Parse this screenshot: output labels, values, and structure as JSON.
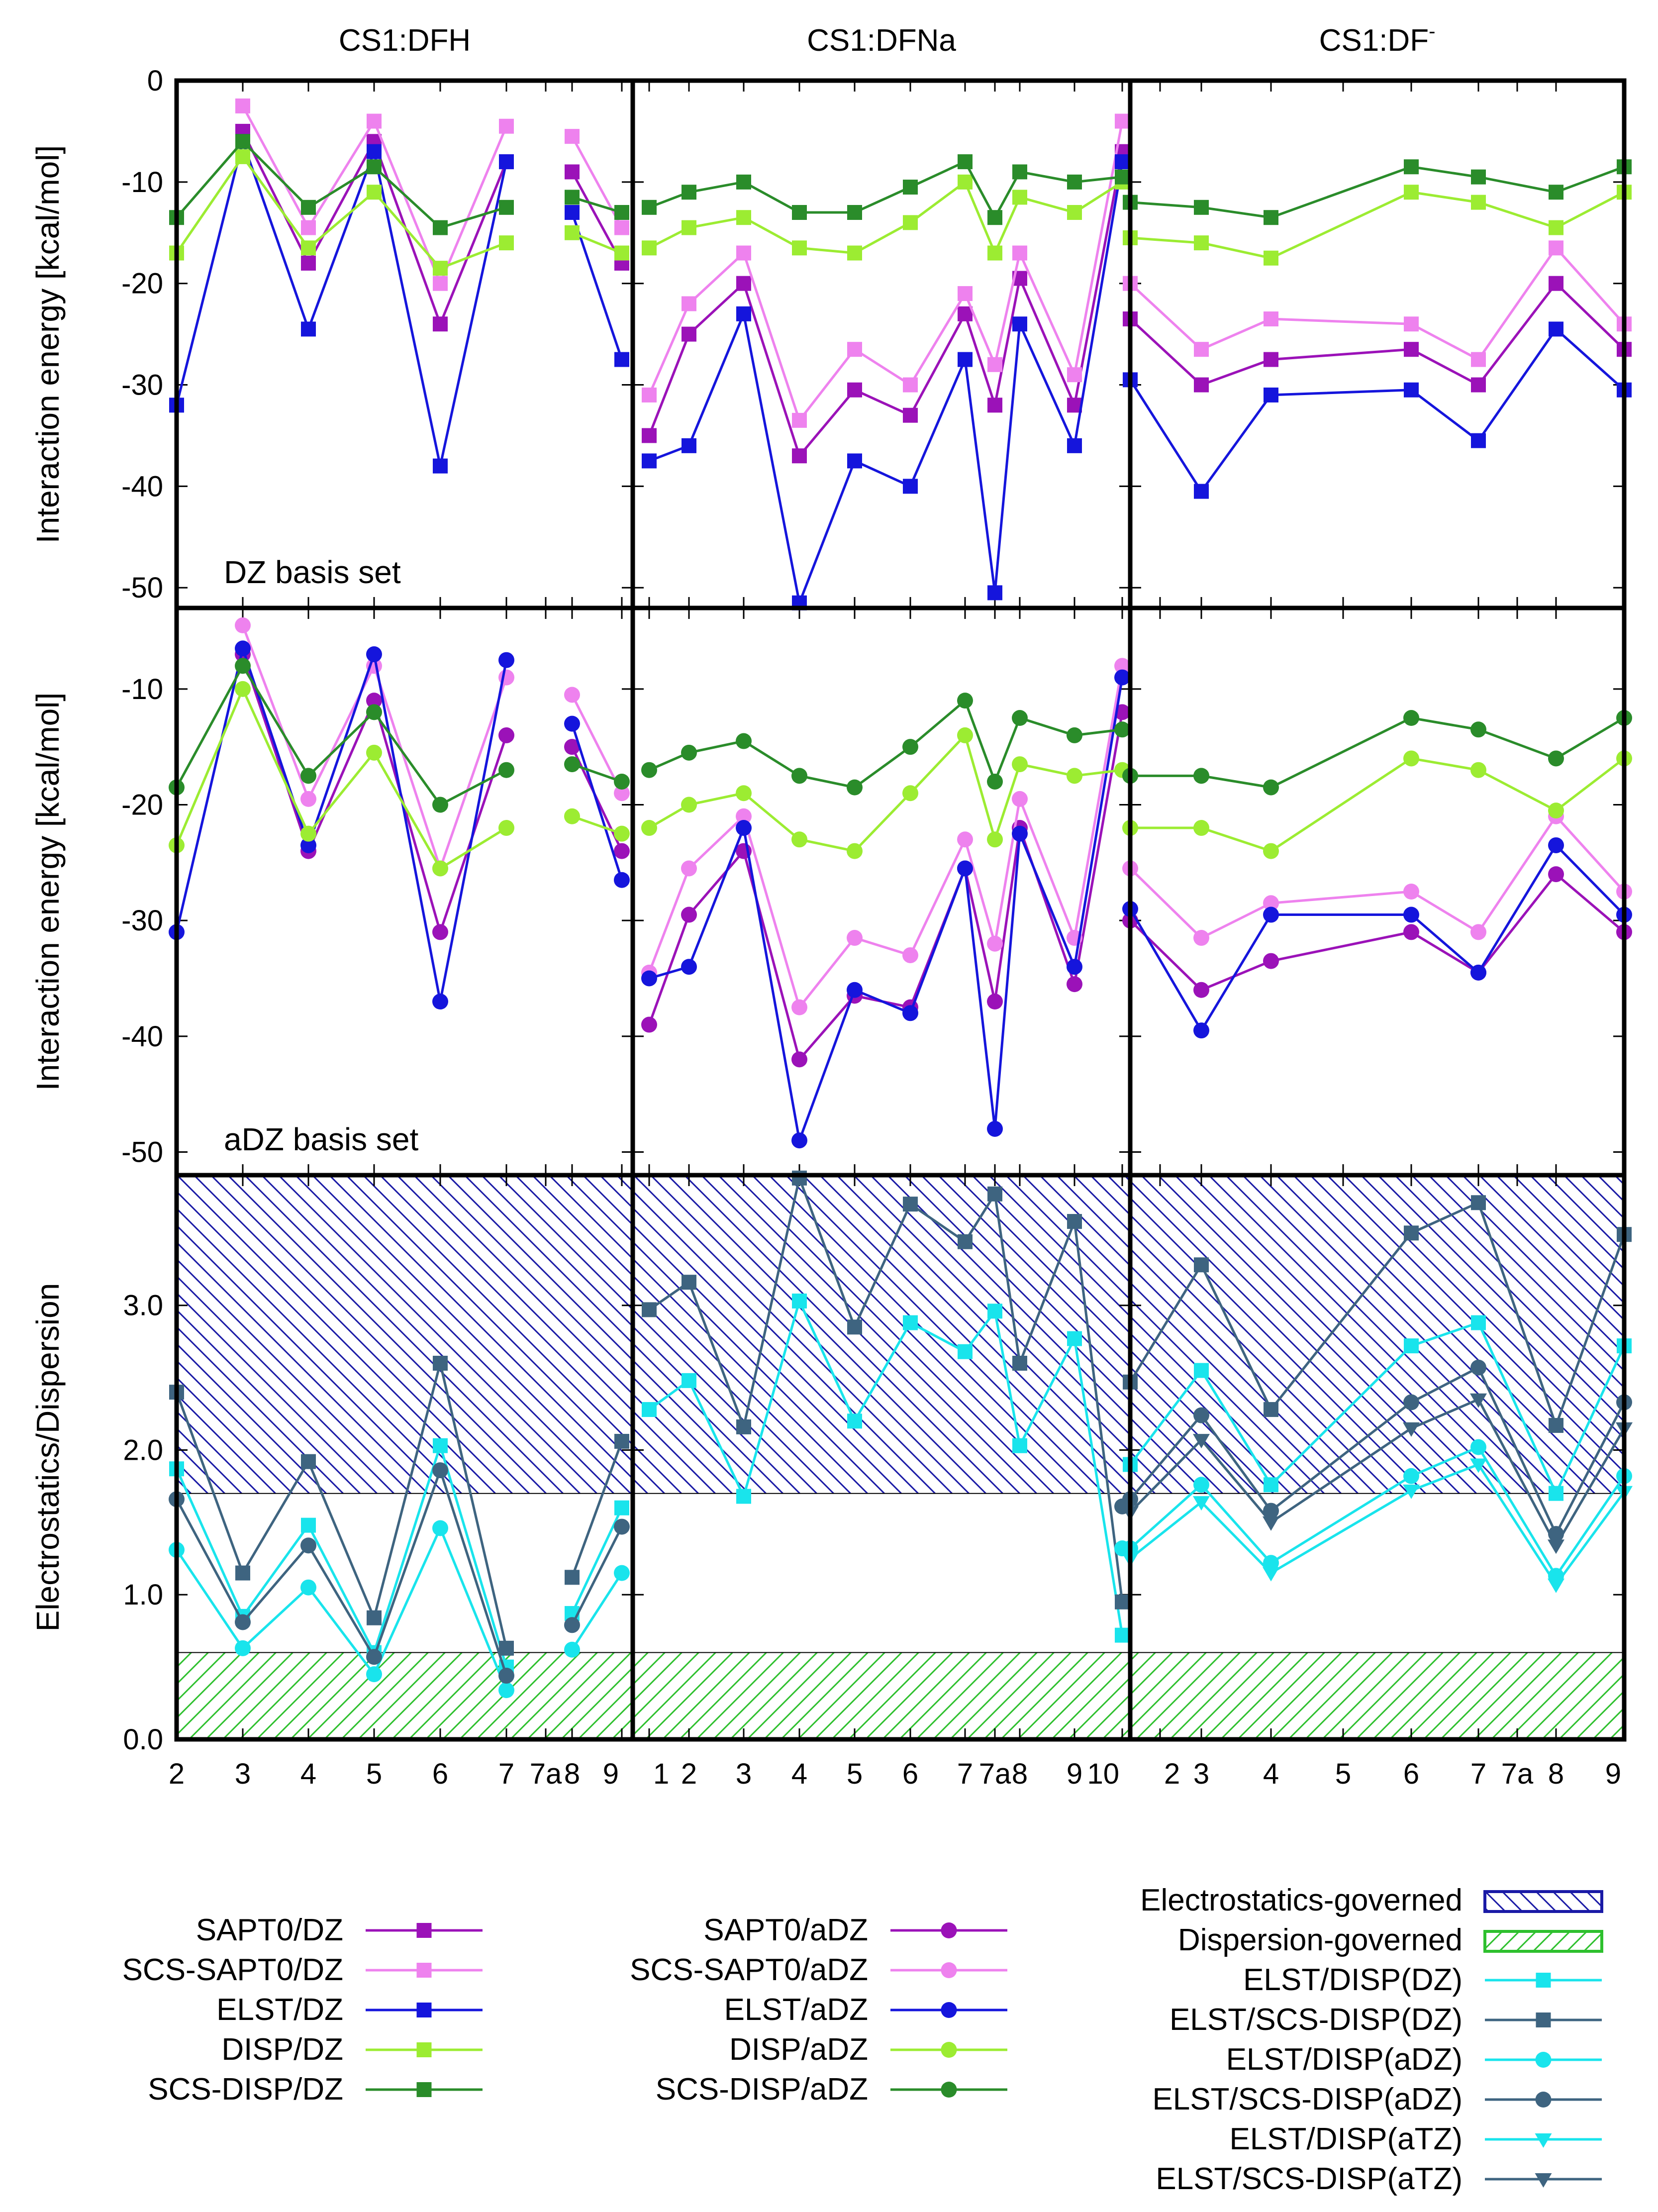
{
  "chart_data": {
    "type": "line",
    "columns": [
      {
        "title": "CS1:DFH",
        "x_tick_labels": [
          "2",
          "3",
          "4",
          "5",
          "6",
          "7",
          "7a",
          "8",
          "9"
        ]
      },
      {
        "title": "CS1:DFNa",
        "x_tick_labels": [
          "1",
          "2",
          "3",
          "4",
          "5",
          "6",
          "7",
          "7a",
          "8",
          "9",
          "10"
        ]
      },
      {
        "title": "CS1:DF",
        "title_superscript": "-",
        "x_tick_labels": [
          "2",
          "3",
          "4",
          "5",
          "6",
          "7",
          "7a",
          "8",
          "9"
        ]
      }
    ],
    "rows": [
      {
        "ylabel": "Interaction energy [kcal/mol]",
        "note": "DZ basis set",
        "ylim": [
          -52,
          0
        ],
        "y_ticks": [
          "0",
          "-10",
          "-20",
          "-30",
          "-40",
          "-50"
        ]
      },
      {
        "ylabel": "Interaction energy [kcal/mol]",
        "note": "aDZ basis set",
        "ylim": [
          -52,
          -3
        ],
        "y_ticks": [
          "-10",
          "-20",
          "-30",
          "-40",
          "-50"
        ]
      },
      {
        "ylabel": "Electrostatics/Dispersion",
        "ylim": [
          0,
          3.9
        ],
        "y_ticks": [
          "0.0",
          "1.0",
          "2.0",
          "3.0"
        ]
      }
    ],
    "regions": [
      {
        "name": "Electrostatics-governed",
        "range": [
          1.7,
          3.9
        ],
        "color": "#1a1aa6"
      },
      {
        "name": "Dispersion-governed",
        "range": [
          0,
          0.6
        ],
        "color": "#2ec02e"
      }
    ],
    "series": [
      {
        "name": "SAPT0/DZ",
        "row": 0,
        "color": "#9b12b8",
        "marker": "square",
        "values": [
          [
            null,
            -5,
            -18,
            -6,
            -24,
            -8,
            null,
            -9,
            -18
          ],
          [
            -35,
            -25,
            -20,
            -37,
            -30.5,
            -33,
            -23,
            -32,
            -19.5,
            -32,
            -7
          ],
          [
            -23.5,
            -30,
            -27.5,
            -26.5,
            -30,
            -20,
            -26.5
          ]
        ]
      },
      {
        "name": "SCS-SAPT0/DZ",
        "row": 0,
        "color": "#ee82ee",
        "marker": "square",
        "values": [
          [
            null,
            -2.5,
            -14.5,
            -4,
            -20,
            -4.5,
            null,
            -5.5,
            -14.5
          ],
          [
            -31,
            -22,
            -17,
            -33.5,
            -26.5,
            -30,
            -21,
            -28,
            -17,
            -29,
            -4
          ],
          [
            -20,
            -26.5,
            -23.5,
            -24,
            -27.5,
            -16.5,
            -24
          ]
        ]
      },
      {
        "name": "ELST/DZ",
        "row": 0,
        "color": "#1515dc",
        "marker": "square",
        "values": [
          [
            -32,
            -6,
            -24.5,
            -7,
            -38,
            -8,
            null,
            -13,
            -27.5
          ],
          [
            -37.5,
            -36,
            -23,
            -51.5,
            -37.5,
            -40,
            -27.5,
            -50.5,
            -24,
            -36,
            -8
          ],
          [
            -29.5,
            -40.5,
            -31,
            -30.5,
            -35.5,
            -24.5,
            -30.5
          ]
        ]
      },
      {
        "name": "DISP/DZ",
        "row": 0,
        "color": "#9cec32",
        "marker": "square",
        "values": [
          [
            -17,
            -7.5,
            -16.5,
            -11,
            -18.5,
            -16,
            null,
            -15,
            -17
          ],
          [
            -16.5,
            -14.5,
            -13.5,
            -16.5,
            -17,
            -14,
            -10,
            -17,
            -11.5,
            -13,
            -10
          ],
          [
            -15.5,
            -16,
            -17.5,
            -11,
            -12,
            -14.5,
            -11
          ]
        ]
      },
      {
        "name": "SCS-DISP/DZ",
        "row": 0,
        "color": "#2a8c2a",
        "marker": "square",
        "values": [
          [
            -13.5,
            -6,
            -12.5,
            -8.5,
            -14.5,
            -12.5,
            null,
            -11.5,
            -13
          ],
          [
            -12.5,
            -11,
            -10,
            -13,
            -13,
            -10.5,
            -8,
            -13.5,
            -9,
            -10,
            -9.5
          ],
          [
            -12,
            -12.5,
            -13.5,
            -8.5,
            -9.5,
            -11,
            -8.5
          ]
        ]
      },
      {
        "name": "SAPT0/aDZ",
        "row": 1,
        "color": "#9b12b8",
        "marker": "circle",
        "values": [
          [
            null,
            -7,
            -24,
            -11,
            -31,
            -14,
            null,
            -15,
            -24
          ],
          [
            -39,
            -29.5,
            -24,
            -42,
            -36.5,
            -37.5,
            -25.5,
            -37,
            -22,
            -35.5,
            -12
          ],
          [
            -30,
            -36,
            -33.5,
            -31,
            -34.5,
            -26,
            -31
          ]
        ]
      },
      {
        "name": "SCS-SAPT0/aDZ",
        "row": 1,
        "color": "#ee82ee",
        "marker": "circle",
        "values": [
          [
            null,
            -4.5,
            -19.5,
            -8,
            -25.5,
            -9,
            null,
            -10.5,
            -19
          ],
          [
            -34.5,
            -25.5,
            -21,
            -37.5,
            -31.5,
            -33,
            -23,
            -32,
            -19.5,
            -31.5,
            -8
          ],
          [
            -25.5,
            -31.5,
            -28.5,
            -27.5,
            -31,
            -21,
            -27.5
          ]
        ]
      },
      {
        "name": "ELST/aDZ",
        "row": 1,
        "color": "#1515dc",
        "marker": "circle",
        "values": [
          [
            -31,
            -6.5,
            -23.5,
            -7,
            -37,
            -7.5,
            null,
            -13,
            -26.5
          ],
          [
            -35,
            -34,
            -22,
            -49,
            -36,
            -38,
            -25.5,
            -48,
            -22.5,
            -34,
            -9
          ],
          [
            -29,
            -39.5,
            -29.5,
            -29.5,
            -34.5,
            -23.5,
            -29.5
          ]
        ]
      },
      {
        "name": "DISP/aDZ",
        "row": 1,
        "color": "#9cec32",
        "marker": "circle",
        "values": [
          [
            -23.5,
            -10,
            -22.5,
            -15.5,
            -25.5,
            -22,
            null,
            -21,
            -22.5
          ],
          [
            -22,
            -20,
            -19,
            -23,
            -24,
            -19,
            -14,
            -23,
            -16.5,
            -17.5,
            -17
          ],
          [
            -22,
            -22,
            -24,
            -16,
            -17,
            -20.5,
            -16
          ]
        ]
      },
      {
        "name": "SCS-DISP/aDZ",
        "row": 1,
        "color": "#2a8c2a",
        "marker": "circle",
        "values": [
          [
            -18.5,
            -8,
            -17.5,
            -12,
            -20,
            -17,
            null,
            -16.5,
            -18
          ],
          [
            -17,
            -15.5,
            -14.5,
            -17.5,
            -18.5,
            -15,
            -11,
            -18,
            -12.5,
            -14,
            -13.5
          ],
          [
            -17.5,
            -17.5,
            -18.5,
            -12.5,
            -13.5,
            -16,
            -12.5
          ]
        ]
      },
      {
        "name": "ELST/DISP(DZ)",
        "row": 2,
        "color": "#19e4ec",
        "marker": "square",
        "values": [
          [
            1.87,
            0.85,
            1.48,
            0.6,
            2.03,
            0.5,
            null,
            0.87,
            1.6
          ],
          [
            2.28,
            2.48,
            1.68,
            3.03,
            2.2,
            2.88,
            2.68,
            2.96,
            2.03,
            2.77,
            0.72
          ],
          [
            1.9,
            2.55,
            1.76,
            2.72,
            2.88,
            1.7,
            2.72
          ]
        ]
      },
      {
        "name": "ELST/SCS-DISP(DZ)",
        "row": 2,
        "color": "#3e6480",
        "marker": "square",
        "values": [
          [
            2.4,
            1.15,
            1.92,
            0.84,
            2.6,
            0.63,
            null,
            1.12,
            2.06
          ],
          [
            2.97,
            3.16,
            2.16,
            3.88,
            2.85,
            3.7,
            3.44,
            3.77,
            2.6,
            3.58,
            0.95
          ],
          [
            2.47,
            3.28,
            2.28,
            3.5,
            3.71,
            2.17,
            3.49
          ]
        ]
      },
      {
        "name": "ELST/DISP(aDZ)",
        "row": 2,
        "color": "#19e4ec",
        "marker": "circle",
        "values": [
          [
            1.31,
            0.63,
            1.05,
            0.45,
            1.46,
            0.34,
            null,
            0.62,
            1.15
          ],
          [
            null,
            null,
            null,
            null,
            null,
            null,
            null,
            null,
            null,
            null,
            1.32
          ],
          [
            1.32,
            1.76,
            1.22,
            1.82,
            2.02,
            1.13,
            1.82
          ]
        ]
      },
      {
        "name": "ELST/SCS-DISP(aDZ)",
        "row": 2,
        "color": "#3e6480",
        "marker": "circle",
        "values": [
          [
            1.66,
            0.81,
            1.34,
            0.57,
            1.86,
            0.44,
            null,
            0.79,
            1.47
          ],
          [
            null,
            null,
            null,
            null,
            null,
            null,
            null,
            null,
            null,
            null,
            1.61
          ],
          [
            1.66,
            2.24,
            1.58,
            2.33,
            2.57,
            1.42,
            2.33
          ]
        ]
      },
      {
        "name": "ELST/DISP(aTZ)",
        "row": 2,
        "color": "#19e4ec",
        "marker": "triangle-down",
        "values": [
          [
            null,
            null,
            null,
            null,
            null,
            null,
            null,
            null,
            null
          ],
          [
            null,
            null,
            null,
            null,
            null,
            null,
            null,
            null,
            null,
            null,
            null
          ],
          [
            1.25,
            1.64,
            1.15,
            1.72,
            1.9,
            1.07,
            1.71
          ]
        ]
      },
      {
        "name": "ELST/SCS-DISP(aTZ)",
        "row": 2,
        "color": "#3e6480",
        "marker": "triangle-down",
        "values": [
          [
            null,
            null,
            null,
            null,
            null,
            null,
            null,
            null,
            null
          ],
          [
            null,
            null,
            null,
            null,
            null,
            null,
            null,
            null,
            null,
            null,
            null
          ],
          [
            1.57,
            2.07,
            1.5,
            2.15,
            2.35,
            1.34,
            2.15
          ]
        ]
      }
    ],
    "column3_x_positions": [
      "2",
      "3",
      "4",
      "6",
      "7",
      "8",
      "9"
    ],
    "legend": [
      {
        "column": 0,
        "entries": [
          "SAPT0/DZ",
          "SCS-SAPT0/DZ",
          "ELST/DZ",
          "DISP/DZ",
          "SCS-DISP/DZ"
        ]
      },
      {
        "column": 1,
        "entries": [
          "SAPT0/aDZ",
          "SCS-SAPT0/aDZ",
          "ELST/aDZ",
          "DISP/aDZ",
          "SCS-DISP/aDZ"
        ]
      },
      {
        "column": 2,
        "entries": [
          "Electrostatics-governed",
          "Dispersion-governed",
          "ELST/DISP(DZ)",
          "ELST/SCS-DISP(DZ)",
          "ELST/DISP(aDZ)",
          "ELST/SCS-DISP(aDZ)",
          "ELST/DISP(aTZ)",
          "ELST/SCS-DISP(aTZ)"
        ]
      }
    ]
  }
}
